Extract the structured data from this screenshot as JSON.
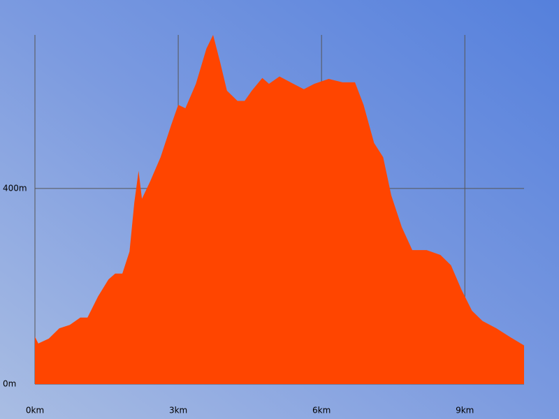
{
  "chart_data": {
    "type": "area",
    "color": "#ff4500",
    "grid": true,
    "x": [
      0,
      0.07,
      0.29,
      0.51,
      0.73,
      0.95,
      1.1,
      1.32,
      1.54,
      1.68,
      1.83,
      1.98,
      2.08,
      2.17,
      2.24,
      2.41,
      2.63,
      2.85,
      3.0,
      3.15,
      3.37,
      3.59,
      3.73,
      3.88,
      4.02,
      4.24,
      4.39,
      4.54,
      4.76,
      4.9,
      5.12,
      5.41,
      5.63,
      5.85,
      6.15,
      6.44,
      6.7,
      6.88,
      7.1,
      7.29,
      7.46,
      7.68,
      7.9,
      8.2,
      8.49,
      8.71,
      8.93,
      9.15,
      9.37,
      9.66,
      9.95,
      10.24
    ],
    "values": [
      97,
      83,
      93,
      114,
      121,
      136,
      136,
      179,
      214,
      226,
      226,
      271,
      371,
      436,
      379,
      414,
      464,
      529,
      571,
      564,
      614,
      686,
      714,
      657,
      600,
      579,
      579,
      600,
      626,
      614,
      629,
      614,
      603,
      614,
      624,
      617,
      617,
      571,
      493,
      464,
      386,
      321,
      274,
      274,
      264,
      243,
      193,
      150,
      129,
      114,
      96,
      79
    ],
    "xlim": [
      0,
      10.24
    ],
    "ylim": [
      0,
      714
    ],
    "xticks": [
      {
        "value": 0,
        "label": "0km"
      },
      {
        "value": 3,
        "label": "3km"
      },
      {
        "value": 6,
        "label": "6km"
      },
      {
        "value": 9,
        "label": "9km"
      }
    ],
    "yticks": [
      {
        "value": 0,
        "label": "0m"
      },
      {
        "value": 400,
        "label": "400m"
      }
    ]
  }
}
